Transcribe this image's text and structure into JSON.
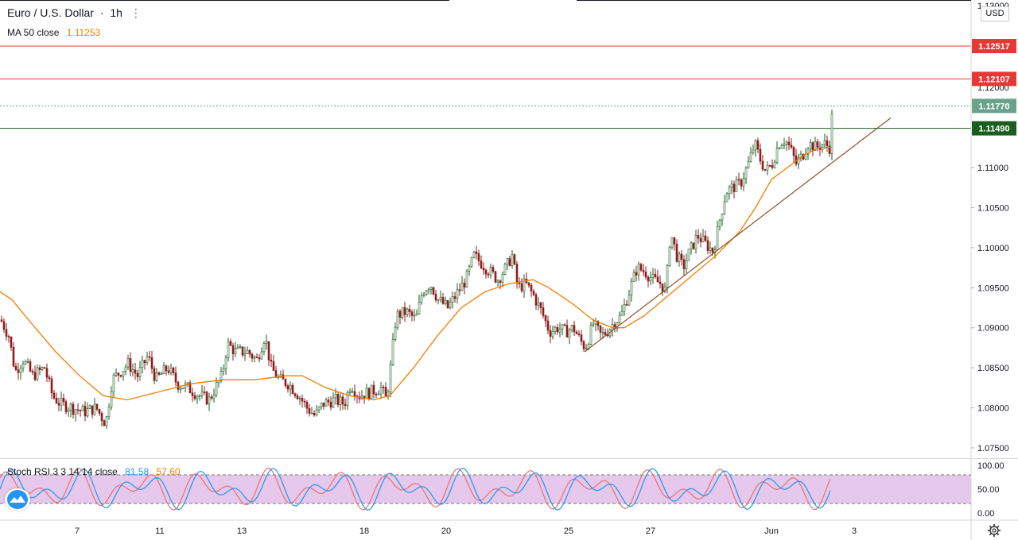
{
  "header": {
    "symbol": "Euro / U.S. Dollar",
    "separator": "·",
    "interval": "1h",
    "ma_label": "MA 50 close",
    "ma_value": "1.11253",
    "currency": "USD",
    "rsi_label": "Stoch RSI 3 3 14 14 close",
    "rsi_k": "81.58",
    "rsi_d": "57.60"
  },
  "colors": {
    "up": "#26a69a",
    "up_fill": "#ffffff",
    "candle_outline": "#1b5e20",
    "down": "#8e1c1c",
    "ma": "#f57c00",
    "trendline": "#8d4f2a",
    "level_red": "#e53935",
    "level_green": "#1b5e20",
    "current": "#6aa38a",
    "stoch_k": "#2196f3",
    "stoch_d": "#e57373",
    "band": "#e1bee7"
  },
  "chart_data": {
    "type": "candlestick",
    "title": "Euro / U.S. Dollar · 1h",
    "ylim": [
      1.0725,
      1.1305
    ],
    "y_ticks": [
      "1.07500",
      "1.08000",
      "1.08500",
      "1.09000",
      "1.09500",
      "1.10000",
      "1.10500",
      "1.11000"
    ],
    "y_tick_top_partial": "1.13000",
    "x_ticks": [
      "7",
      "11",
      "13",
      "18",
      "20",
      "25",
      "27",
      "Jun",
      "3"
    ],
    "levels": [
      {
        "price": 1.12517,
        "label": "1.12517",
        "style": "red"
      },
      {
        "price": 1.12107,
        "label": "1.12107",
        "style": "red"
      },
      {
        "price": 1.1149,
        "label": "1.11490",
        "style": "green"
      },
      {
        "price": 1.1177,
        "label": "1.11770",
        "style": "current"
      }
    ],
    "price_path": [
      [
        0,
        1.091
      ],
      [
        10,
        1.089
      ],
      [
        18,
        1.0845
      ],
      [
        28,
        1.086
      ],
      [
        40,
        1.084
      ],
      [
        55,
        1.085
      ],
      [
        65,
        1.0815
      ],
      [
        75,
        1.0805
      ],
      [
        90,
        1.08
      ],
      [
        105,
        1.0795
      ],
      [
        120,
        1.08
      ],
      [
        132,
        1.078
      ],
      [
        140,
        1.0835
      ],
      [
        150,
        1.0845
      ],
      [
        160,
        1.0855
      ],
      [
        172,
        1.084
      ],
      [
        185,
        1.0865
      ],
      [
        195,
        1.0835
      ],
      [
        210,
        1.085
      ],
      [
        222,
        1.083
      ],
      [
        235,
        1.0825
      ],
      [
        250,
        1.0815
      ],
      [
        262,
        1.081
      ],
      [
        270,
        1.0825
      ],
      [
        278,
        1.084
      ],
      [
        285,
        1.088
      ],
      [
        295,
        1.087
      ],
      [
        310,
        1.087
      ],
      [
        322,
        1.086
      ],
      [
        332,
        1.089
      ],
      [
        340,
        1.085
      ],
      [
        350,
        1.0835
      ],
      [
        362,
        1.083
      ],
      [
        375,
        1.0815
      ],
      [
        385,
        1.08
      ],
      [
        395,
        1.079
      ],
      [
        405,
        1.0805
      ],
      [
        420,
        1.081
      ],
      [
        432,
        1.0805
      ],
      [
        440,
        1.083
      ],
      [
        450,
        1.0815
      ],
      [
        465,
        1.082
      ],
      [
        478,
        1.0825
      ],
      [
        485,
        1.081
      ],
      [
        490,
        1.085
      ],
      [
        497,
        1.0915
      ],
      [
        510,
        1.092
      ],
      [
        522,
        1.091
      ],
      [
        530,
        1.0945
      ],
      [
        540,
        1.0955
      ],
      [
        550,
        1.0935
      ],
      [
        562,
        1.0925
      ],
      [
        575,
        1.0945
      ],
      [
        585,
        1.096
      ],
      [
        595,
        1.099
      ],
      [
        605,
        1.098
      ],
      [
        615,
        1.097
      ],
      [
        625,
        1.096
      ],
      [
        635,
        1.0975
      ],
      [
        643,
        1.099
      ],
      [
        650,
        1.095
      ],
      [
        660,
        1.0955
      ],
      [
        670,
        1.094
      ],
      [
        680,
        1.092
      ],
      [
        690,
        1.0895
      ],
      [
        700,
        1.09
      ],
      [
        710,
        1.0895
      ],
      [
        720,
        1.09
      ],
      [
        728,
        1.0885
      ],
      [
        735,
        1.0875
      ],
      [
        745,
        1.0905
      ],
      [
        755,
        1.089
      ],
      [
        762,
        1.0895
      ],
      [
        770,
        1.0905
      ],
      [
        780,
        1.0915
      ],
      [
        790,
        1.0945
      ],
      [
        800,
        1.0975
      ],
      [
        810,
        1.097
      ],
      [
        820,
        1.096
      ],
      [
        830,
        1.0955
      ],
      [
        836,
        1.0945
      ],
      [
        842,
        1.102
      ],
      [
        850,
        1.099
      ],
      [
        858,
        1.0975
      ],
      [
        866,
        1.0995
      ],
      [
        876,
        1.1015
      ],
      [
        886,
        1.1005
      ],
      [
        896,
        1.0995
      ],
      [
        905,
        1.104
      ],
      [
        912,
        1.107
      ],
      [
        920,
        1.1075
      ],
      [
        930,
        1.108
      ],
      [
        940,
        1.1105
      ],
      [
        948,
        1.113
      ],
      [
        955,
        1.111
      ],
      [
        962,
        1.1095
      ],
      [
        970,
        1.1105
      ],
      [
        978,
        1.113
      ],
      [
        986,
        1.1135
      ],
      [
        992,
        1.1125
      ],
      [
        1000,
        1.1105
      ],
      [
        1008,
        1.1115
      ],
      [
        1015,
        1.113
      ],
      [
        1025,
        1.1125
      ],
      [
        1035,
        1.113
      ],
      [
        1042,
        1.1125
      ],
      [
        1046,
        1.1175
      ]
    ],
    "ma_path": [
      [
        0,
        1.0945
      ],
      [
        15,
        1.0935
      ],
      [
        40,
        1.0905
      ],
      [
        70,
        1.087
      ],
      [
        100,
        1.084
      ],
      [
        130,
        1.0815
      ],
      [
        160,
        1.081
      ],
      [
        200,
        1.082
      ],
      [
        240,
        1.083
      ],
      [
        280,
        1.0835
      ],
      [
        320,
        1.0835
      ],
      [
        360,
        1.084
      ],
      [
        380,
        1.084
      ],
      [
        410,
        1.0825
      ],
      [
        440,
        1.0815
      ],
      [
        470,
        1.081
      ],
      [
        490,
        1.0815
      ],
      [
        520,
        1.085
      ],
      [
        550,
        1.089
      ],
      [
        580,
        1.0925
      ],
      [
        610,
        1.0945
      ],
      [
        640,
        1.0955
      ],
      [
        670,
        1.096
      ],
      [
        690,
        1.095
      ],
      [
        720,
        1.093
      ],
      [
        745,
        1.091
      ],
      [
        770,
        1.09
      ],
      [
        785,
        1.09
      ],
      [
        810,
        1.0915
      ],
      [
        840,
        1.094
      ],
      [
        870,
        1.0965
      ],
      [
        900,
        1.099
      ],
      [
        930,
        1.102
      ],
      [
        950,
        1.105
      ],
      [
        970,
        1.1085
      ],
      [
        990,
        1.11
      ],
      [
        1010,
        1.1115
      ],
      [
        1030,
        1.1125
      ],
      [
        1046,
        1.11253
      ]
    ],
    "trendline": [
      [
        735,
        1.087
      ],
      [
        1120,
        1.1162
      ]
    ],
    "stoch_rsi": {
      "ylim": [
        0,
        100
      ],
      "y_ticks": [
        "100.00",
        "50.00",
        "0.00"
      ],
      "upper_band": 80,
      "lower_band": 20,
      "k": 81.58,
      "d": 57.6
    }
  }
}
